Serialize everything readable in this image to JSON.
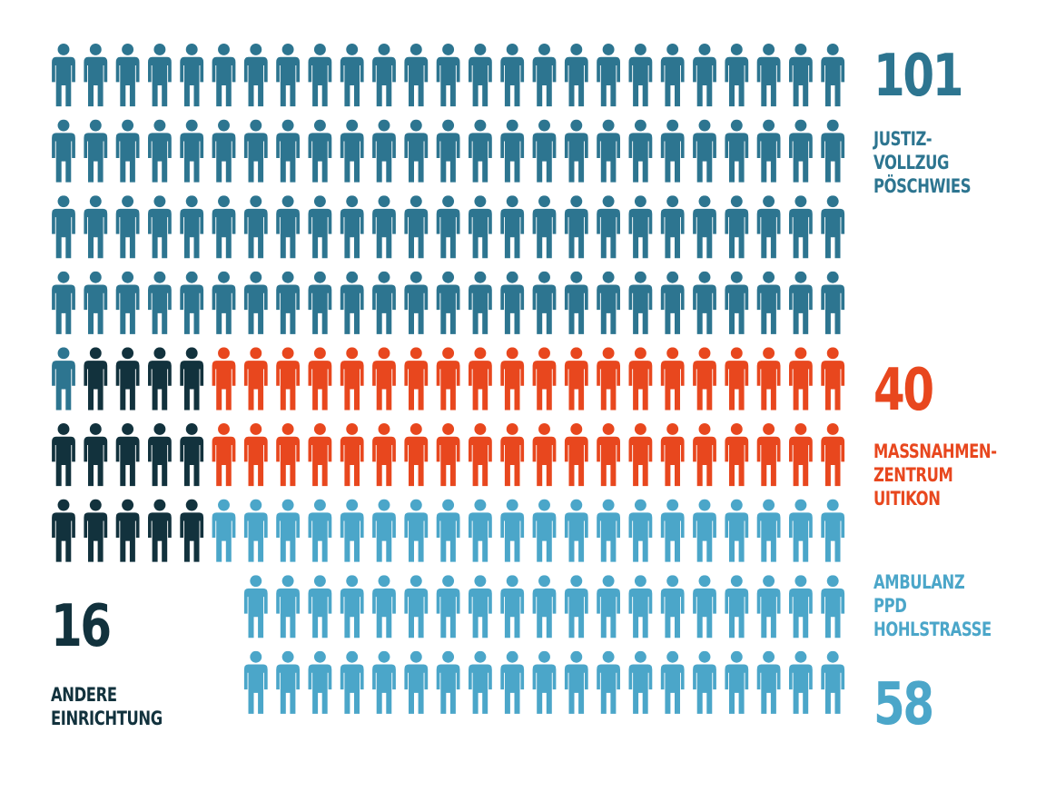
{
  "chart_data": {
    "type": "pictogram",
    "unit": "person",
    "series": [
      {
        "key": "poeschwies",
        "value": 101,
        "color": "#2d7590",
        "label_lines": [
          "JUSTIZ-",
          "VOLLZUG",
          "PÖSCHWIES"
        ]
      },
      {
        "key": "uitikon",
        "value": 40,
        "color": "#e8471e",
        "label_lines": [
          "MASSNAHMEN-",
          "ZENTRUM",
          "UITIKON"
        ]
      },
      {
        "key": "hohlstrasse",
        "value": 58,
        "color": "#4ba6c9",
        "label_lines": [
          "AMBULANZ",
          "PPD",
          "HOHLSTRASSE"
        ]
      },
      {
        "key": "andere",
        "value": 16,
        "color": "#12323d",
        "label_lines": [
          "ANDERE",
          "EINRICHTUNG"
        ]
      }
    ]
  },
  "labels": {
    "poeschwies": {
      "count": "101",
      "lines": [
        "JUSTIZ-",
        "VOLLZUG",
        "PÖSCHWIES"
      ]
    },
    "uitikon": {
      "count": "40",
      "lines": [
        "MASSNAHMEN-",
        "ZENTRUM",
        "UITIKON"
      ]
    },
    "hohlstrasse": {
      "count": "58",
      "lines": [
        "AMBULANZ",
        "PPD",
        "HOHLSTRASSE"
      ]
    },
    "andere": {
      "count": "16",
      "lines": [
        "ANDERE",
        "EINRICHTUNG"
      ]
    }
  }
}
